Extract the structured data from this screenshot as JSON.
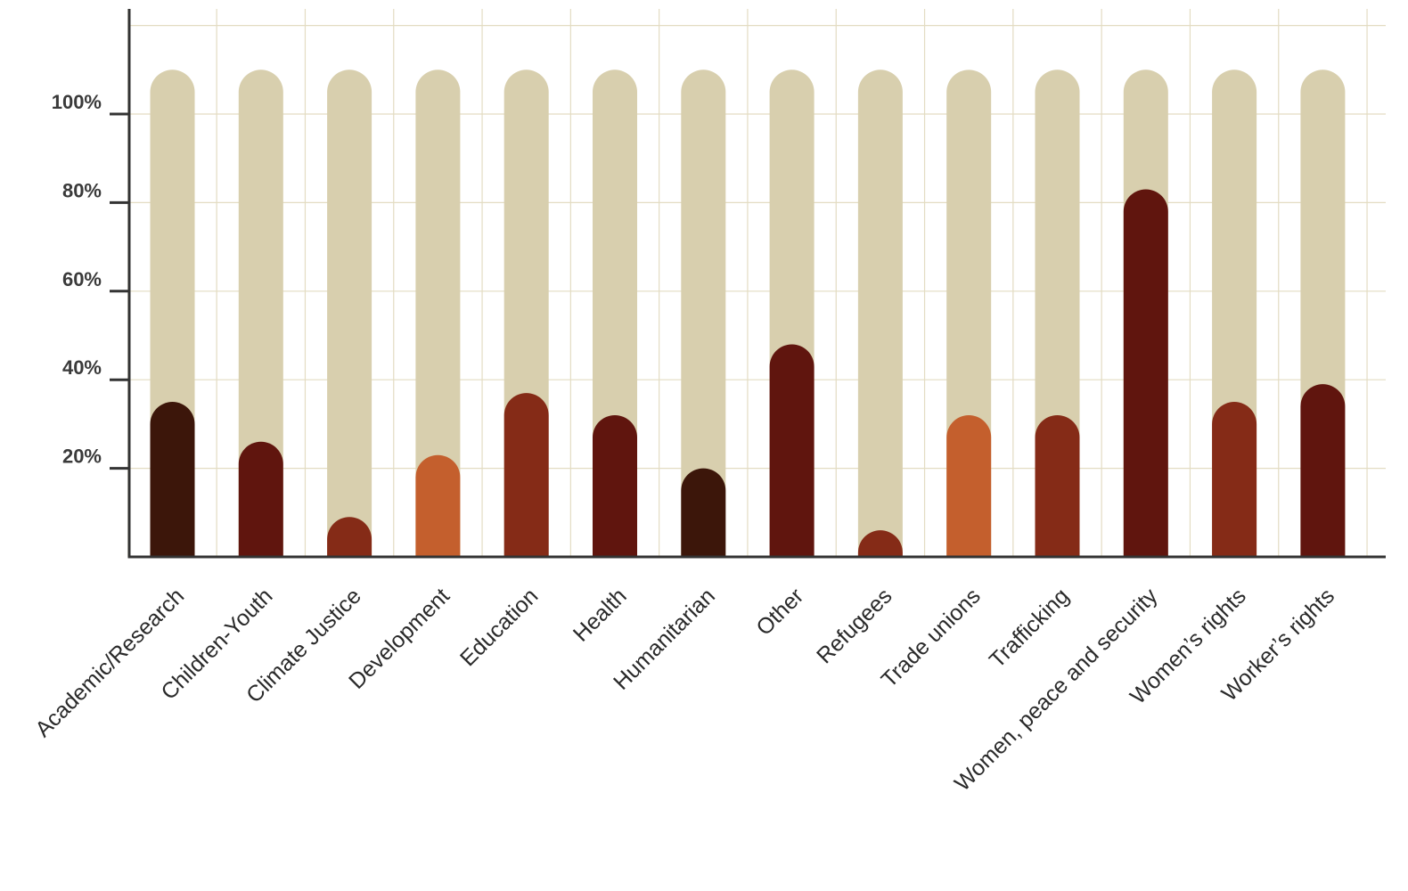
{
  "chart_data": {
    "type": "bar",
    "title": "",
    "xlabel": "",
    "ylabel": "",
    "ylim": [
      0,
      110
    ],
    "yticks": [
      20,
      40,
      60,
      80,
      100
    ],
    "ytick_labels": [
      "20%",
      "40%",
      "60%",
      "80%",
      "100%"
    ],
    "grid": true,
    "bar_style": "rounded-top pill over full-height track",
    "track_value": 110,
    "track_color": "#d8cfae",
    "grid_color": "#e3dcc2",
    "axis_color": "#333333",
    "categories": [
      "Academic/Research",
      "Children-Youth",
      "Climate Justice",
      "Development",
      "Education",
      "Health",
      "Humanitarian",
      "Other",
      "Refugees",
      "Trade unions",
      "Trafficking",
      "Women, peace and security",
      "Women’s rights",
      "Worker’s rights"
    ],
    "values": [
      35,
      26,
      9,
      23,
      37,
      32,
      20,
      48,
      6,
      32,
      32,
      83,
      35,
      39
    ],
    "colors": [
      "#3c160a",
      "#60150e",
      "#852b17",
      "#c45f2d",
      "#852b17",
      "#60150e",
      "#3c160a",
      "#60150e",
      "#852b17",
      "#c45f2d",
      "#852b17",
      "#60150e",
      "#852b17",
      "#60150e"
    ]
  }
}
